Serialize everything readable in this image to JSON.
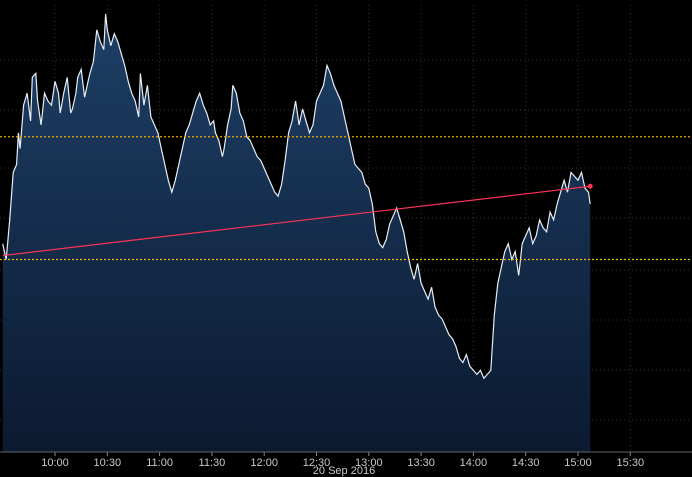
{
  "chart_data": {
    "type": "area",
    "date_label": "20 Sep 2016",
    "x_tick_labels": [
      "10:00",
      "10:30",
      "11:00",
      "11:30",
      "12:00",
      "12:30",
      "13:00",
      "13:30",
      "14:00",
      "14:30",
      "15:00",
      "15:30"
    ],
    "x_range_minutes": [
      570,
      960
    ],
    "y_range": [
      0,
      1
    ],
    "grid": true,
    "series": [
      {
        "values": [
          [
            570,
            0.42
          ],
          [
            572,
            0.38
          ],
          [
            574,
            0.48
          ],
          [
            576,
            0.6
          ],
          [
            578,
            0.62
          ],
          [
            579,
            0.7
          ],
          [
            580,
            0.66
          ],
          [
            582,
            0.77
          ],
          [
            584,
            0.8
          ],
          [
            586,
            0.73
          ],
          [
            587,
            0.84
          ],
          [
            589,
            0.85
          ],
          [
            590,
            0.78
          ],
          [
            592,
            0.72
          ],
          [
            594,
            0.8
          ],
          [
            596,
            0.78
          ],
          [
            598,
            0.77
          ],
          [
            600,
            0.83
          ],
          [
            602,
            0.8
          ],
          [
            603,
            0.75
          ],
          [
            605,
            0.8
          ],
          [
            607,
            0.84
          ],
          [
            609,
            0.75
          ],
          [
            610,
            0.76
          ],
          [
            612,
            0.8
          ],
          [
            613,
            0.84
          ],
          [
            615,
            0.86
          ],
          [
            617,
            0.79
          ],
          [
            619,
            0.83
          ],
          [
            620,
            0.85
          ],
          [
            622,
            0.88
          ],
          [
            624,
            0.96
          ],
          [
            626,
            0.93
          ],
          [
            628,
            0.91
          ],
          [
            629,
            1.0
          ],
          [
            630,
            0.96
          ],
          [
            632,
            0.92
          ],
          [
            634,
            0.95
          ],
          [
            636,
            0.93
          ],
          [
            638,
            0.9
          ],
          [
            640,
            0.87
          ],
          [
            642,
            0.83
          ],
          [
            644,
            0.8
          ],
          [
            646,
            0.78
          ],
          [
            648,
            0.74
          ],
          [
            649,
            0.85
          ],
          [
            651,
            0.77
          ],
          [
            653,
            0.82
          ],
          [
            655,
            0.74
          ],
          [
            657,
            0.72
          ],
          [
            659,
            0.7
          ],
          [
            661,
            0.66
          ],
          [
            663,
            0.62
          ],
          [
            665,
            0.58
          ],
          [
            667,
            0.55
          ],
          [
            669,
            0.58
          ],
          [
            671,
            0.62
          ],
          [
            673,
            0.66
          ],
          [
            675,
            0.7
          ],
          [
            677,
            0.72
          ],
          [
            679,
            0.75
          ],
          [
            681,
            0.78
          ],
          [
            683,
            0.8
          ],
          [
            685,
            0.77
          ],
          [
            687,
            0.75
          ],
          [
            689,
            0.72
          ],
          [
            691,
            0.73
          ],
          [
            692,
            0.7
          ],
          [
            694,
            0.68
          ],
          [
            696,
            0.64
          ],
          [
            697,
            0.66
          ],
          [
            699,
            0.72
          ],
          [
            701,
            0.76
          ],
          [
            702,
            0.82
          ],
          [
            704,
            0.8
          ],
          [
            706,
            0.75
          ],
          [
            708,
            0.73
          ],
          [
            710,
            0.69
          ],
          [
            712,
            0.68
          ],
          [
            714,
            0.66
          ],
          [
            716,
            0.64
          ],
          [
            718,
            0.63
          ],
          [
            720,
            0.61
          ],
          [
            722,
            0.59
          ],
          [
            724,
            0.57
          ],
          [
            726,
            0.55
          ],
          [
            728,
            0.54
          ],
          [
            730,
            0.57
          ],
          [
            732,
            0.63
          ],
          [
            734,
            0.7
          ],
          [
            736,
            0.73
          ],
          [
            738,
            0.78
          ],
          [
            740,
            0.72
          ],
          [
            742,
            0.76
          ],
          [
            744,
            0.73
          ],
          [
            746,
            0.7
          ],
          [
            748,
            0.72
          ],
          [
            750,
            0.78
          ],
          [
            752,
            0.8
          ],
          [
            754,
            0.82
          ],
          [
            756,
            0.87
          ],
          [
            758,
            0.85
          ],
          [
            760,
            0.82
          ],
          [
            762,
            0.8
          ],
          [
            764,
            0.78
          ],
          [
            766,
            0.74
          ],
          [
            768,
            0.7
          ],
          [
            770,
            0.66
          ],
          [
            772,
            0.62
          ],
          [
            774,
            0.61
          ],
          [
            776,
            0.6
          ],
          [
            778,
            0.57
          ],
          [
            780,
            0.56
          ],
          [
            782,
            0.52
          ],
          [
            784,
            0.45
          ],
          [
            786,
            0.42
          ],
          [
            788,
            0.41
          ],
          [
            790,
            0.43
          ],
          [
            792,
            0.47
          ],
          [
            794,
            0.49
          ],
          [
            796,
            0.51
          ],
          [
            798,
            0.48
          ],
          [
            800,
            0.45
          ],
          [
            802,
            0.4
          ],
          [
            804,
            0.36
          ],
          [
            806,
            0.33
          ],
          [
            808,
            0.37
          ],
          [
            810,
            0.32
          ],
          [
            812,
            0.3
          ],
          [
            814,
            0.28
          ],
          [
            816,
            0.31
          ],
          [
            818,
            0.26
          ],
          [
            820,
            0.24
          ],
          [
            822,
            0.23
          ],
          [
            824,
            0.21
          ],
          [
            826,
            0.19
          ],
          [
            828,
            0.18
          ],
          [
            830,
            0.16
          ],
          [
            832,
            0.13
          ],
          [
            834,
            0.12
          ],
          [
            836,
            0.14
          ],
          [
            838,
            0.11
          ],
          [
            840,
            0.1
          ],
          [
            842,
            0.09
          ],
          [
            844,
            0.1
          ],
          [
            846,
            0.08
          ],
          [
            848,
            0.09
          ],
          [
            850,
            0.1
          ],
          [
            852,
            0.24
          ],
          [
            854,
            0.32
          ],
          [
            856,
            0.36
          ],
          [
            858,
            0.4
          ],
          [
            860,
            0.42
          ],
          [
            862,
            0.38
          ],
          [
            864,
            0.4
          ],
          [
            866,
            0.34
          ],
          [
            868,
            0.42
          ],
          [
            870,
            0.44
          ],
          [
            872,
            0.46
          ],
          [
            874,
            0.42
          ],
          [
            876,
            0.44
          ],
          [
            878,
            0.48
          ],
          [
            880,
            0.46
          ],
          [
            882,
            0.45
          ],
          [
            884,
            0.5
          ],
          [
            886,
            0.48
          ],
          [
            888,
            0.52
          ],
          [
            890,
            0.55
          ],
          [
            892,
            0.58
          ],
          [
            894,
            0.55
          ],
          [
            896,
            0.6
          ],
          [
            898,
            0.59
          ],
          [
            900,
            0.58
          ],
          [
            902,
            0.6
          ],
          [
            904,
            0.56
          ],
          [
            906,
            0.55
          ],
          [
            907,
            0.52
          ]
        ]
      }
    ],
    "reference_lines": [
      {
        "type": "horizontal",
        "value": 0.69,
        "color": "#e6a800",
        "style": "dotted"
      },
      {
        "type": "horizontal",
        "value": 0.38,
        "color": "#e6c200",
        "style": "dotted"
      },
      {
        "type": "trend",
        "from": [
          570,
          0.39
        ],
        "to": [
          907,
          0.565
        ],
        "color": "#ff3355",
        "style": "solid"
      }
    ],
    "colors": {
      "background": "#000000",
      "area_fill_top": "#1e3f66",
      "area_fill_bottom": "#0b1a30",
      "line": "#e6eef8",
      "grid": "#333333"
    }
  }
}
